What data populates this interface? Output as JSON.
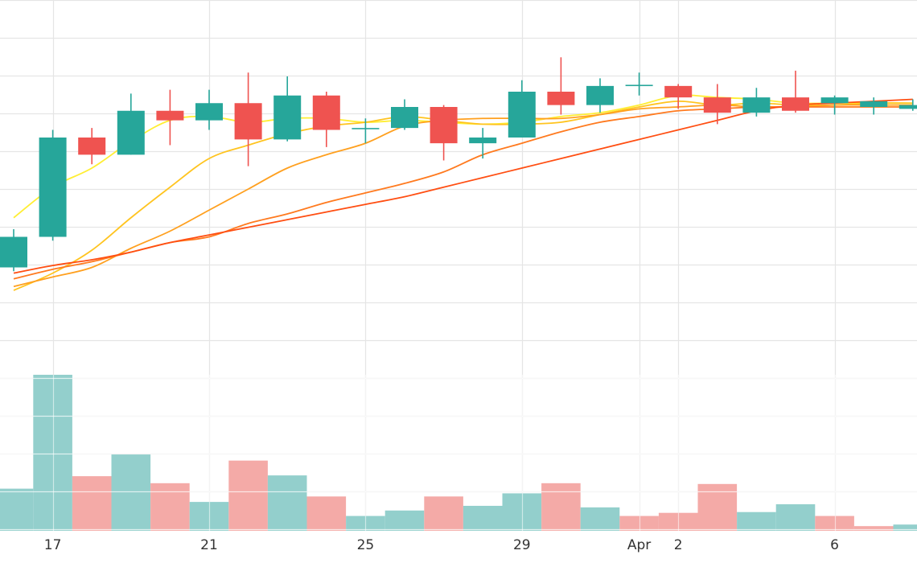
{
  "chart_data": {
    "type": "candlestick",
    "x_ticks": [
      {
        "date": "Mar 17",
        "label": "17"
      },
      {
        "date": "Mar 21",
        "label": "21"
      },
      {
        "date": "Mar 25",
        "label": "25"
      },
      {
        "date": "Mar 29",
        "label": "29"
      },
      {
        "date": "Apr 1",
        "label": "Apr"
      },
      {
        "date": "Apr 2",
        "label": "2"
      },
      {
        "date": "Apr 6",
        "label": "6"
      }
    ],
    "colors": {
      "up": "#26a69a",
      "down": "#ef5350",
      "volume_up": "#93cfcc",
      "volume_down": "#f4aaa7",
      "grid": "#e5e5e5",
      "ma_lines": [
        "#ffee33",
        "#ffc41f",
        "#ffa01f",
        "#ff7a1f",
        "#ff4e12"
      ]
    },
    "price_range": [
      0,
      100
    ],
    "volume_range": [
      0,
      100
    ],
    "candles": [
      {
        "date": "Mar 16",
        "open": 30,
        "close": 38,
        "high": 40,
        "low": 29
      },
      {
        "date": "Mar 17",
        "open": 38,
        "close": 64,
        "high": 66,
        "low": 37
      },
      {
        "date": "Mar 18",
        "open": 64,
        "close": 59.5,
        "high": 66.5,
        "low": 57
      },
      {
        "date": "Mar 19",
        "open": 59.5,
        "close": 71,
        "high": 75.5,
        "low": 59.5
      },
      {
        "date": "Mar 20",
        "open": 71,
        "close": 68.5,
        "high": 76.5,
        "low": 62
      },
      {
        "date": "Mar 21",
        "open": 68.5,
        "close": 73,
        "high": 76.5,
        "low": 66
      },
      {
        "date": "Mar 22",
        "open": 73,
        "close": 63.5,
        "high": 81,
        "low": 56.5
      },
      {
        "date": "Mar 23",
        "open": 63.5,
        "close": 75,
        "high": 80,
        "low": 63
      },
      {
        "date": "Mar 24",
        "open": 75,
        "close": 66,
        "high": 76,
        "low": 61.5
      },
      {
        "date": "Mar 25",
        "open": 66.2,
        "close": 66.5,
        "high": 69,
        "low": 62.5
      },
      {
        "date": "Mar 26",
        "open": 66.5,
        "close": 72,
        "high": 74,
        "low": 66
      },
      {
        "date": "Mar 27",
        "open": 72,
        "close": 62.5,
        "high": 72.5,
        "low": 58
      },
      {
        "date": "Mar 28",
        "open": 62.5,
        "close": 64,
        "high": 66.5,
        "low": 58.5
      },
      {
        "date": "Mar 29",
        "open": 64,
        "close": 76,
        "high": 79,
        "low": 64
      },
      {
        "date": "Mar 30",
        "open": 76,
        "close": 72.5,
        "high": 85,
        "low": 70
      },
      {
        "date": "Mar 31",
        "open": 72.5,
        "close": 77.5,
        "high": 79.5,
        "low": 70.5
      },
      {
        "date": "Apr 1",
        "open": 77.5,
        "close": 77.8,
        "high": 81,
        "low": 75
      },
      {
        "date": "Apr 2",
        "open": 77.5,
        "close": 74.5,
        "high": 78,
        "low": 71.5
      },
      {
        "date": "Apr 3",
        "open": 74.5,
        "close": 70.5,
        "high": 78,
        "low": 67.5
      },
      {
        "date": "Apr 4",
        "open": 70.5,
        "close": 74.5,
        "high": 77,
        "low": 69.5
      },
      {
        "date": "Apr 5",
        "open": 74.5,
        "close": 71,
        "high": 81.5,
        "low": 70.5
      },
      {
        "date": "Apr 6",
        "open": 73,
        "close": 74.5,
        "high": 75,
        "low": 70
      },
      {
        "date": "Apr 7",
        "open": 72,
        "close": 73.5,
        "high": 74.5,
        "low": 70
      },
      {
        "date": "Apr 8",
        "open": 71.5,
        "close": 72.5,
        "high": 74,
        "low": 71
      }
    ],
    "volume": [
      {
        "date": "Mar 16",
        "value": 27,
        "direction": "up"
      },
      {
        "date": "Mar 17",
        "value": 100,
        "direction": "up"
      },
      {
        "date": "Mar 18",
        "value": 35,
        "direction": "down"
      },
      {
        "date": "Mar 19",
        "value": 49,
        "direction": "up"
      },
      {
        "date": "Mar 20",
        "value": 30.5,
        "direction": "down"
      },
      {
        "date": "Mar 21",
        "value": 18.5,
        "direction": "up"
      },
      {
        "date": "Mar 22",
        "value": 45,
        "direction": "down"
      },
      {
        "date": "Mar 23",
        "value": 35.5,
        "direction": "up"
      },
      {
        "date": "Mar 24",
        "value": 22,
        "direction": "down"
      },
      {
        "date": "Mar 25",
        "value": 9.5,
        "direction": "up"
      },
      {
        "date": "Mar 26",
        "value": 13,
        "direction": "up"
      },
      {
        "date": "Mar 27",
        "value": 22,
        "direction": "down"
      },
      {
        "date": "Mar 28",
        "value": 16,
        "direction": "up"
      },
      {
        "date": "Mar 29",
        "value": 24,
        "direction": "up"
      },
      {
        "date": "Mar 30",
        "value": 30.5,
        "direction": "down"
      },
      {
        "date": "Mar 31",
        "value": 15,
        "direction": "up"
      },
      {
        "date": "Apr 1",
        "value": 9.5,
        "direction": "down"
      },
      {
        "date": "Apr 2",
        "value": 11.5,
        "direction": "down"
      },
      {
        "date": "Apr 3",
        "value": 30,
        "direction": "down"
      },
      {
        "date": "Apr 4",
        "value": 12,
        "direction": "up"
      },
      {
        "date": "Apr 5",
        "value": 17,
        "direction": "up"
      },
      {
        "date": "Apr 6",
        "value": 9.5,
        "direction": "down"
      },
      {
        "date": "Apr 7",
        "value": 3,
        "direction": "down"
      },
      {
        "date": "Apr 8",
        "value": 4,
        "direction": "up"
      }
    ],
    "moving_averages": [
      {
        "name": "",
        "values": [
          43,
          51,
          56,
          63,
          68.5,
          69.5,
          68,
          69,
          69,
          68,
          68.5,
          68,
          67.5,
          68,
          69.5,
          70.5,
          72.5,
          75,
          74.5,
          74,
          73,
          73,
          73,
          73
        ]
      },
      {
        "name": "",
        "values": [
          24,
          28.5,
          34.5,
          43,
          51,
          58.5,
          62,
          65,
          67,
          68,
          69.5,
          68.5,
          67.5,
          67.5,
          68,
          70,
          72,
          73.5,
          72.5,
          73,
          72.5,
          72.5,
          73,
          73
        ]
      },
      {
        "name": "",
        "values": [
          25,
          27.5,
          30,
          35,
          39.5,
          45,
          50.5,
          56,
          59.5,
          62.5,
          67,
          68.5,
          69,
          69,
          69,
          70,
          71.5,
          72,
          72.5,
          72,
          72,
          72.5,
          72.5,
          72.5
        ]
      },
      {
        "name": "",
        "values": [
          27,
          29.5,
          31.5,
          34,
          36.5,
          38,
          41.5,
          44,
          47,
          49.5,
          52,
          55,
          59.5,
          62.5,
          65.5,
          68,
          69.5,
          71,
          71.5,
          72,
          72,
          72,
          72,
          72
        ]
      },
      {
        "name": "",
        "values": [
          28.5,
          30.5,
          32,
          34,
          36.5,
          38.5,
          40.5,
          42.5,
          44.5,
          46.5,
          48.5,
          51,
          53.5,
          56,
          58.5,
          61,
          63.5,
          66,
          68.5,
          71,
          72.5,
          73,
          73.5,
          74
        ]
      }
    ]
  }
}
